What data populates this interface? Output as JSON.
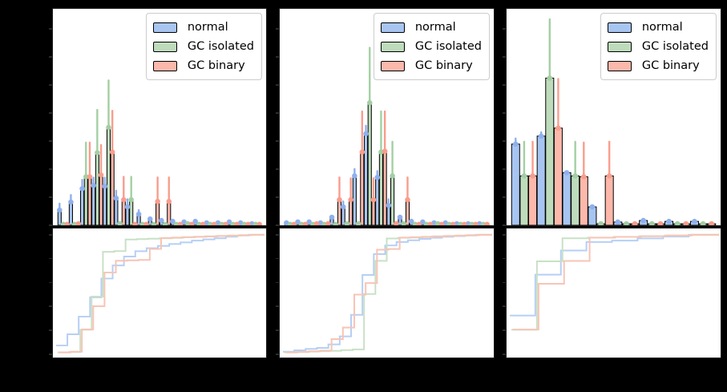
{
  "figure": {
    "background": "#000000",
    "axes_background": "#ffffff",
    "bar_edge": "#000000",
    "spine": "#1a1a1a",
    "note": "axis tick labels and axis titles are rendered black-on-black and are not visible"
  },
  "legend": {
    "items": [
      {
        "label": "normal"
      },
      {
        "label": "GC isolated"
      },
      {
        "label": "GC binary"
      }
    ]
  },
  "styles": {
    "normal": {
      "fill": "#a8c5f1",
      "accent": "#8fb0ee",
      "cdf_line": "#b6cff5"
    },
    "gc_isolated": {
      "fill": "#bedcbc",
      "accent": "#a3cfa3",
      "cdf_line": "#c8e1c5"
    },
    "gc_binary": {
      "fill": "#fcb8ab",
      "accent": "#f99d8c",
      "cdf_line": "#f8c4b5"
    }
  },
  "chart_data": [
    {
      "type": "bar",
      "subtype": "histogram with upper error bars (top) + cumulative fraction step plot (bottom)",
      "n_bins": 18,
      "ylim": [
        0,
        1
      ],
      "units": "bar values are fractions of panel height; axis labels not visible",
      "legend_position": "upper right",
      "series": [
        {
          "name": "normal",
          "values": [
            0.07,
            0.107,
            0.169,
            0.184,
            0.18,
            0.125,
            0.085,
            0.051,
            0.029,
            0.022,
            0.018,
            0.015,
            0.018,
            0.011,
            0.011,
            0.015,
            0.011,
            0.007
          ],
          "error_tops": [
            0.1,
            0.14,
            0.21,
            0.22,
            0.22,
            0.16,
            0.12,
            0.07,
            0,
            0,
            0,
            0,
            0,
            0,
            0,
            0,
            0,
            0
          ]
        },
        {
          "name": "GC isolated",
          "values": [
            0.004,
            0.004,
            0.224,
            0.335,
            0.452,
            0.007,
            0.118,
            0.004,
            0.004,
            0.004,
            0.004,
            0.007,
            0.004,
            0.004,
            0.004,
            0.004,
            0.004,
            0.004
          ],
          "error_tops": [
            0,
            0,
            0.382,
            0.533,
            0.669,
            0,
            0.224,
            0,
            0,
            0,
            0,
            0,
            0,
            0,
            0,
            0,
            0,
            0
          ]
        },
        {
          "name": "GC binary",
          "values": [
            0.004,
            0.007,
            0.224,
            0.232,
            0.338,
            0.118,
            0.004,
            0.004,
            0.11,
            0.11,
            0.004,
            0.004,
            0.004,
            0.004,
            0.004,
            0.004,
            0.004,
            0.004
          ],
          "error_tops": [
            0,
            0,
            0.382,
            0.371,
            0.529,
            0.224,
            0,
            0,
            0.221,
            0.221,
            0,
            0,
            0,
            0,
            0,
            0,
            0,
            0
          ]
        }
      ],
      "cdf": "bottom panel = cumulative sum of each series normalized to 1"
    },
    {
      "type": "bar",
      "subtype": "histogram with upper error bars (top) + cumulative fraction step plot (bottom)",
      "n_bins": 18,
      "ylim": [
        0,
        1
      ],
      "units": "bar values are fractions of panel height; axis labels not visible",
      "legend_position": "upper right",
      "series": [
        {
          "name": "normal",
          "values": [
            0.011,
            0.015,
            0.015,
            0.011,
            0.037,
            0.085,
            0.228,
            0.423,
            0.221,
            0.092,
            0.037,
            0.018,
            0.015,
            0.011,
            0.011,
            0.007,
            0.007,
            0.007
          ],
          "error_tops": [
            0,
            0,
            0,
            0,
            0,
            0.11,
            0.26,
            0.46,
            0.25,
            0.12,
            0,
            0,
            0,
            0,
            0,
            0,
            0,
            0
          ]
        },
        {
          "name": "GC isolated",
          "values": [
            0.004,
            0.004,
            0.004,
            0.004,
            0.004,
            0.007,
            0.007,
            0.566,
            0.338,
            0.228,
            0.007,
            0.004,
            0.004,
            0.007,
            0.004,
            0.004,
            0.004,
            0.004
          ],
          "error_tops": [
            0,
            0,
            0,
            0,
            0,
            0,
            0,
            0.82,
            0.526,
            0.386,
            0,
            0,
            0,
            0,
            0,
            0,
            0,
            0
          ]
        },
        {
          "name": "GC binary",
          "values": [
            0.004,
            0.004,
            0.007,
            0.007,
            0.118,
            0.118,
            0.338,
            0.118,
            0.342,
            0.007,
            0.118,
            0.004,
            0.004,
            0.004,
            0.004,
            0.004,
            0.004,
            0.004
          ],
          "error_tops": [
            0,
            0,
            0,
            0,
            0.221,
            0.217,
            0.526,
            0.217,
            0.526,
            0,
            0.221,
            0,
            0,
            0,
            0,
            0,
            0,
            0
          ]
        }
      ],
      "cdf": "bottom panel = cumulative sum of each series normalized to 1"
    },
    {
      "type": "bar",
      "subtype": "histogram with upper error bars (top) + cumulative fraction step plot (bottom)",
      "n_bins": 8,
      "ylim": [
        0,
        1
      ],
      "units": "bar values are fractions of panel height; axis labels not visible",
      "legend_position": "upper right",
      "series": [
        {
          "name": "normal",
          "values": [
            0.375,
            0.412,
            0.243,
            0.085,
            0.015,
            0.022,
            0.018,
            0.018
          ],
          "error_tops": [
            0.401,
            0.43,
            0,
            0,
            0,
            0,
            0,
            0
          ]
        },
        {
          "name": "GC isolated",
          "values": [
            0.228,
            0.68,
            0.228,
            0.007,
            0.007,
            0.007,
            0.007,
            0.007
          ],
          "error_tops": [
            0.386,
            0.952,
            0.386,
            0,
            0,
            0,
            0,
            0
          ]
        },
        {
          "name": "GC binary",
          "values": [
            0.228,
            0.449,
            0.224,
            0.228,
            0.007,
            0.007,
            0.007,
            0.007
          ],
          "error_tops": [
            0.386,
            0.676,
            0.382,
            0.386,
            0,
            0,
            0,
            0
          ]
        }
      ],
      "cdf": "bottom panel = cumulative sum of each series normalized to 1"
    }
  ]
}
